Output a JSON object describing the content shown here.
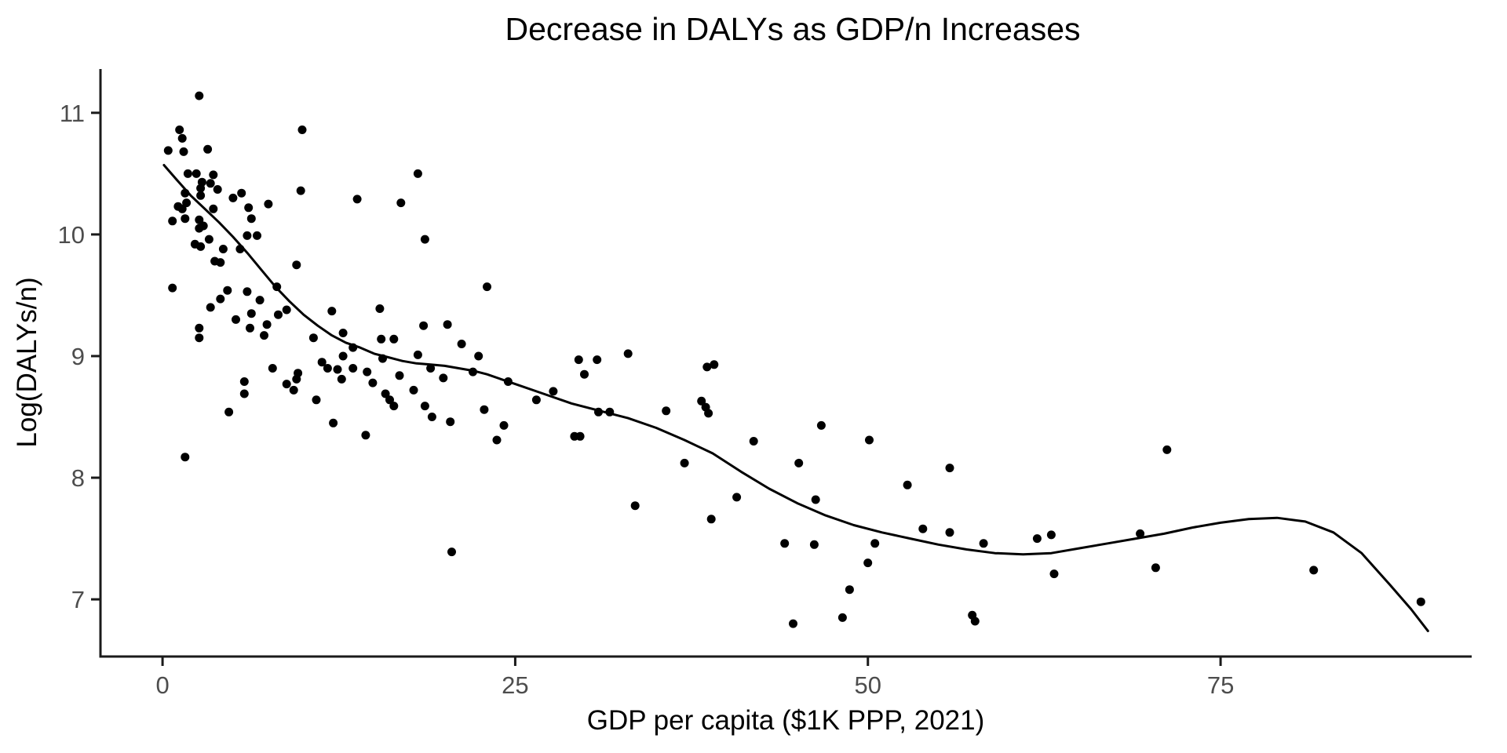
{
  "colors": {
    "background": "#ffffff",
    "point": "#000000",
    "smooth_line": "#000000",
    "axis_line": "#1a1a1a",
    "tick_mark": "#1a1a1a",
    "tick_label": "#4d4d4d",
    "title_text": "#000000"
  },
  "chart_data": {
    "type": "scatter",
    "title": "Decrease in DALYs as GDP/n Increases",
    "xlabel": "GDP per capita ($1K PPP, 2021)",
    "ylabel": "Log(DALYs/n)",
    "x_ticks": [
      0,
      25,
      50,
      75
    ],
    "y_ticks": [
      7,
      8,
      9,
      10,
      11
    ],
    "xlim": [
      -4.4,
      92.8
    ],
    "ylim": [
      6.53,
      11.36
    ],
    "grid": false,
    "legend_position": "none",
    "points": [
      [
        2.6,
        11.14
      ],
      [
        1.2,
        10.86
      ],
      [
        9.9,
        10.86
      ],
      [
        1.4,
        10.79
      ],
      [
        0.4,
        10.69
      ],
      [
        1.5,
        10.68
      ],
      [
        3.2,
        10.7
      ],
      [
        1.8,
        10.5
      ],
      [
        2.4,
        10.5
      ],
      [
        3.6,
        10.49
      ],
      [
        18.1,
        10.5
      ],
      [
        2.8,
        10.43
      ],
      [
        3.4,
        10.42
      ],
      [
        2.7,
        10.38
      ],
      [
        3.9,
        10.37
      ],
      [
        9.8,
        10.36
      ],
      [
        2.7,
        10.32
      ],
      [
        1.6,
        10.34
      ],
      [
        5.6,
        10.34
      ],
      [
        5.0,
        10.3
      ],
      [
        13.8,
        10.29
      ],
      [
        16.9,
        10.26
      ],
      [
        1.7,
        10.26
      ],
      [
        7.5,
        10.25
      ],
      [
        1.1,
        10.23
      ],
      [
        1.4,
        10.21
      ],
      [
        3.6,
        10.21
      ],
      [
        6.1,
        10.22
      ],
      [
        0.7,
        10.11
      ],
      [
        1.6,
        10.13
      ],
      [
        2.6,
        10.12
      ],
      [
        6.3,
        10.13
      ],
      [
        2.9,
        10.07
      ],
      [
        2.6,
        10.05
      ],
      [
        6.0,
        9.99
      ],
      [
        6.7,
        9.99
      ],
      [
        3.3,
        9.96
      ],
      [
        18.6,
        9.96
      ],
      [
        2.3,
        9.92
      ],
      [
        2.7,
        9.9
      ],
      [
        4.3,
        9.88
      ],
      [
        5.5,
        9.88
      ],
      [
        3.7,
        9.78
      ],
      [
        4.1,
        9.77
      ],
      [
        9.5,
        9.75
      ],
      [
        0.7,
        9.56
      ],
      [
        4.6,
        9.54
      ],
      [
        6.0,
        9.53
      ],
      [
        8.1,
        9.57
      ],
      [
        23.0,
        9.57
      ],
      [
        4.1,
        9.47
      ],
      [
        6.9,
        9.46
      ],
      [
        3.4,
        9.4
      ],
      [
        15.4,
        9.39
      ],
      [
        8.8,
        9.38
      ],
      [
        12.0,
        9.37
      ],
      [
        6.3,
        9.35
      ],
      [
        8.2,
        9.34
      ],
      [
        5.2,
        9.3
      ],
      [
        7.4,
        9.26
      ],
      [
        18.5,
        9.25
      ],
      [
        20.2,
        9.26
      ],
      [
        6.2,
        9.23
      ],
      [
        2.6,
        9.23
      ],
      [
        12.8,
        9.19
      ],
      [
        7.2,
        9.17
      ],
      [
        2.6,
        9.15
      ],
      [
        15.5,
        9.14
      ],
      [
        16.4,
        9.14
      ],
      [
        10.7,
        9.15
      ],
      [
        13.5,
        9.07
      ],
      [
        21.2,
        9.1
      ],
      [
        18.1,
        9.01
      ],
      [
        22.4,
        9.0
      ],
      [
        12.8,
        9.0
      ],
      [
        33.0,
        9.02
      ],
      [
        15.6,
        8.98
      ],
      [
        29.5,
        8.97
      ],
      [
        30.8,
        8.97
      ],
      [
        11.3,
        8.95
      ],
      [
        39.1,
        8.93
      ],
      [
        38.6,
        8.91
      ],
      [
        7.8,
        8.9
      ],
      [
        11.7,
        8.9
      ],
      [
        13.5,
        8.9
      ],
      [
        19.0,
        8.9
      ],
      [
        12.4,
        8.89
      ],
      [
        14.5,
        8.87
      ],
      [
        22.0,
        8.87
      ],
      [
        9.6,
        8.86
      ],
      [
        29.9,
        8.85
      ],
      [
        16.8,
        8.84
      ],
      [
        19.9,
        8.82
      ],
      [
        5.8,
        8.79
      ],
      [
        12.7,
        8.81
      ],
      [
        24.5,
        8.79
      ],
      [
        8.8,
        8.77
      ],
      [
        14.9,
        8.78
      ],
      [
        9.3,
        8.72
      ],
      [
        9.5,
        8.81
      ],
      [
        17.8,
        8.72
      ],
      [
        15.8,
        8.69
      ],
      [
        5.8,
        8.69
      ],
      [
        27.7,
        8.71
      ],
      [
        10.9,
        8.64
      ],
      [
        16.1,
        8.64
      ],
      [
        26.5,
        8.64
      ],
      [
        38.2,
        8.63
      ],
      [
        16.4,
        8.59
      ],
      [
        18.6,
        8.59
      ],
      [
        38.5,
        8.58
      ],
      [
        22.8,
        8.56
      ],
      [
        4.7,
        8.54
      ],
      [
        30.9,
        8.54
      ],
      [
        31.7,
        8.54
      ],
      [
        35.7,
        8.55
      ],
      [
        38.7,
        8.53
      ],
      [
        19.1,
        8.5
      ],
      [
        20.4,
        8.46
      ],
      [
        12.1,
        8.45
      ],
      [
        46.7,
        8.43
      ],
      [
        24.2,
        8.43
      ],
      [
        14.4,
        8.35
      ],
      [
        29.2,
        8.34
      ],
      [
        29.6,
        8.34
      ],
      [
        23.7,
        8.31
      ],
      [
        41.9,
        8.3
      ],
      [
        50.1,
        8.31
      ],
      [
        71.2,
        8.23
      ],
      [
        1.6,
        8.17
      ],
      [
        37.0,
        8.12
      ],
      [
        45.1,
        8.12
      ],
      [
        55.8,
        8.08
      ],
      [
        52.8,
        7.94
      ],
      [
        40.7,
        7.84
      ],
      [
        46.3,
        7.82
      ],
      [
        33.5,
        7.77
      ],
      [
        38.9,
        7.66
      ],
      [
        53.9,
        7.58
      ],
      [
        55.8,
        7.55
      ],
      [
        69.3,
        7.54
      ],
      [
        63.0,
        7.53
      ],
      [
        62.0,
        7.5
      ],
      [
        58.2,
        7.46
      ],
      [
        44.1,
        7.46
      ],
      [
        46.2,
        7.45
      ],
      [
        50.5,
        7.46
      ],
      [
        20.5,
        7.39
      ],
      [
        50.0,
        7.3
      ],
      [
        70.4,
        7.26
      ],
      [
        81.6,
        7.24
      ],
      [
        63.2,
        7.21
      ],
      [
        48.7,
        7.08
      ],
      [
        89.2,
        6.98
      ],
      [
        57.4,
        6.87
      ],
      [
        57.6,
        6.82
      ],
      [
        48.2,
        6.85
      ],
      [
        44.7,
        6.8
      ]
    ],
    "smooth_line": [
      [
        0.1,
        10.57
      ],
      [
        1,
        10.45
      ],
      [
        2,
        10.32
      ],
      [
        3,
        10.21
      ],
      [
        4,
        10.1
      ],
      [
        5,
        9.98
      ],
      [
        6,
        9.85
      ],
      [
        7,
        9.71
      ],
      [
        8,
        9.57
      ],
      [
        9,
        9.45
      ],
      [
        10,
        9.34
      ],
      [
        11,
        9.25
      ],
      [
        12,
        9.17
      ],
      [
        13,
        9.11
      ],
      [
        14,
        9.07
      ],
      [
        15,
        9.02
      ],
      [
        16,
        8.99
      ],
      [
        17,
        8.96
      ],
      [
        18,
        8.94
      ],
      [
        19,
        8.93
      ],
      [
        20,
        8.92
      ],
      [
        21,
        8.9
      ],
      [
        22,
        8.88
      ],
      [
        23,
        8.85
      ],
      [
        24,
        8.81
      ],
      [
        25,
        8.77
      ],
      [
        27,
        8.69
      ],
      [
        29,
        8.61
      ],
      [
        31,
        8.55
      ],
      [
        33,
        8.49
      ],
      [
        35,
        8.41
      ],
      [
        37,
        8.31
      ],
      [
        39,
        8.2
      ],
      [
        41,
        8.05
      ],
      [
        43,
        7.91
      ],
      [
        45,
        7.79
      ],
      [
        47,
        7.69
      ],
      [
        49,
        7.61
      ],
      [
        51,
        7.55
      ],
      [
        53,
        7.5
      ],
      [
        55,
        7.45
      ],
      [
        57,
        7.41
      ],
      [
        59,
        7.38
      ],
      [
        61,
        7.37
      ],
      [
        63,
        7.38
      ],
      [
        65,
        7.42
      ],
      [
        67,
        7.46
      ],
      [
        69,
        7.5
      ],
      [
        71,
        7.54
      ],
      [
        73,
        7.59
      ],
      [
        75,
        7.63
      ],
      [
        77,
        7.66
      ],
      [
        79,
        7.67
      ],
      [
        81,
        7.64
      ],
      [
        83,
        7.55
      ],
      [
        85,
        7.38
      ],
      [
        87,
        7.12
      ],
      [
        88.5,
        6.92
      ],
      [
        89.7,
        6.74
      ]
    ]
  }
}
